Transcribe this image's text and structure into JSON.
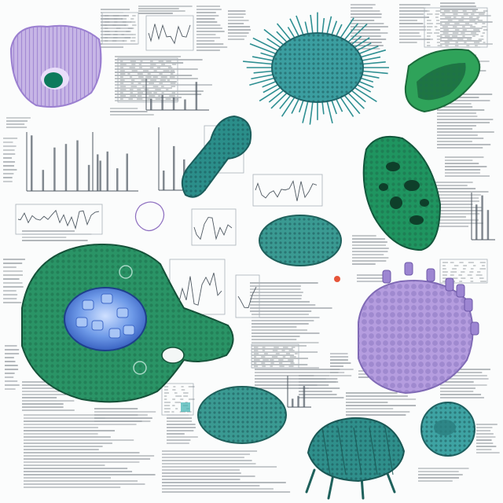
{
  "scene": {
    "background": "#fbfcfc",
    "palette": {
      "teal": "#2e8a8c",
      "teal_dark": "#1f5f63",
      "green": "#2a9a6a",
      "green_dark": "#17563c",
      "bright_green": "#2fa35a",
      "lavender": "#a08ccf",
      "lavender_light": "#c7b6e6",
      "nucleus_blue": "#3b6fd6",
      "ink": "#4f5962",
      "ink_light": "#a9b1b8",
      "red_dot": "#e6553a"
    },
    "illustrations": [
      "lavender-cell-with-green-nucleus",
      "spiky-teal-protozoan",
      "dark-green-leaf-organism",
      "teal-club-organism",
      "green-perforated-organism",
      "teal-oval-cell-right",
      "large-green-cell-with-blue-nucleus",
      "lavender-spherical-colony",
      "teal-oval-cell-bottom",
      "teal-beetle-organism",
      "teal-round-cell"
    ]
  }
}
